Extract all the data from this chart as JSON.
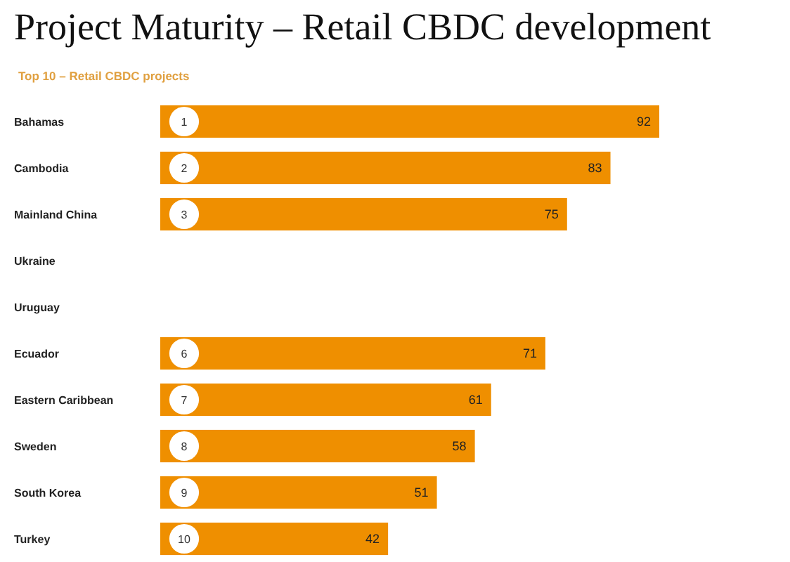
{
  "chart_data": {
    "type": "bar",
    "orientation": "horizontal",
    "title": "Project Maturity – Retail CBDC development",
    "subtitle": "Top 10 – Retail CBDC projects",
    "categories": [
      "Bahamas",
      "Cambodia",
      "Mainland China",
      "Ukraine",
      "Uruguay",
      "Ecuador",
      "Eastern Caribbean",
      "Sweden",
      "South Korea",
      "Turkey"
    ],
    "values": [
      92,
      83,
      75,
      null,
      null,
      71,
      61,
      58,
      51,
      42
    ],
    "color": "#ef8f00",
    "data_labels": true,
    "annotations": [
      {
        "text": "1",
        "y": "Bahamas"
      },
      {
        "text": "2",
        "y": "Cambodia"
      },
      {
        "text": "3",
        "y": "Mainland China"
      },
      {
        "text": "6",
        "y": "Ecuador"
      },
      {
        "text": "7",
        "y": "Eastern Caribbean"
      },
      {
        "text": "8",
        "y": "Sweden"
      },
      {
        "text": "9",
        "y": "South Korea"
      },
      {
        "text": "10",
        "y": "Turkey"
      }
    ]
  }
}
